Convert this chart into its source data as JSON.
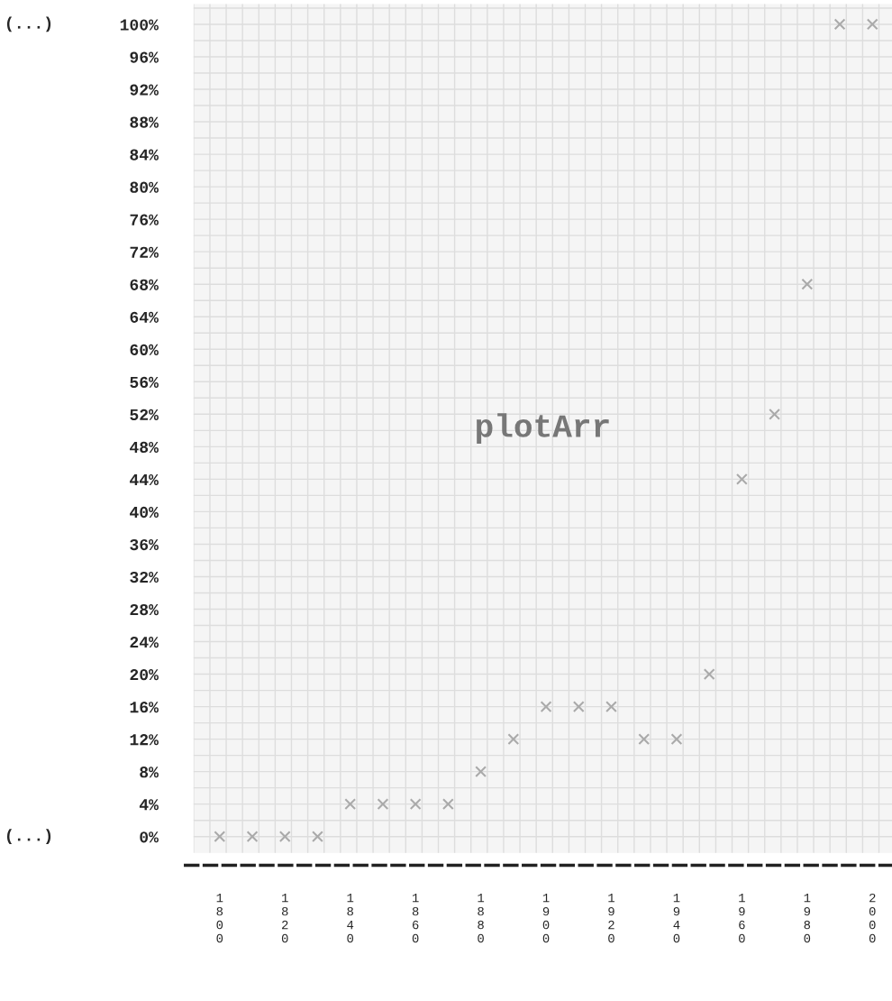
{
  "chart_data": {
    "type": "scatter",
    "title": "plotArr",
    "x": [
      1800,
      1810,
      1820,
      1830,
      1840,
      1850,
      1860,
      1870,
      1880,
      1890,
      1900,
      1910,
      1920,
      1930,
      1940,
      1950,
      1960,
      1970,
      1980,
      1990,
      2000
    ],
    "series": [
      {
        "color": "#aaaaaa",
        "values": [
          0,
          0,
          0,
          0,
          4,
          4,
          4,
          4,
          8,
          12,
          16,
          16,
          16,
          12,
          12,
          20,
          44,
          52,
          68,
          100,
          100
        ]
      }
    ],
    "marker": "cross",
    "xlim": [
      1792,
      2006
    ],
    "xticks": [
      1800,
      1820,
      1840,
      1860,
      1880,
      1900,
      1920,
      1940,
      1960,
      1980,
      2000
    ],
    "ylim": [
      -2,
      102.5
    ],
    "yticks": [
      {
        "value": 0,
        "label": "0%"
      },
      {
        "value": 4,
        "label": "4%"
      },
      {
        "value": 8,
        "label": "8%"
      },
      {
        "value": 12,
        "label": "12%"
      },
      {
        "value": 16,
        "label": "16%"
      },
      {
        "value": 20,
        "label": "20%"
      },
      {
        "value": 24,
        "label": "24%"
      },
      {
        "value": 28,
        "label": "28%"
      },
      {
        "value": 32,
        "label": "32%"
      },
      {
        "value": 36,
        "label": "36%"
      },
      {
        "value": 40,
        "label": "40%"
      },
      {
        "value": 44,
        "label": "44%"
      },
      {
        "value": 48,
        "label": "48%"
      },
      {
        "value": 52,
        "label": "52%"
      },
      {
        "value": 56,
        "label": "56%"
      },
      {
        "value": 60,
        "label": "60%"
      },
      {
        "value": 64,
        "label": "64%"
      },
      {
        "value": 68,
        "label": "68%"
      },
      {
        "value": 72,
        "label": "72%"
      },
      {
        "value": 76,
        "label": "76%"
      },
      {
        "value": 80,
        "label": "80%"
      },
      {
        "value": 84,
        "label": "84%"
      },
      {
        "value": 88,
        "label": "88%"
      },
      {
        "value": 92,
        "label": "92%"
      },
      {
        "value": 96,
        "label": "96%"
      },
      {
        "value": 100,
        "label": "100%"
      }
    ],
    "annotations": [
      "(...)",
      "(...)"
    ],
    "grid": true
  }
}
